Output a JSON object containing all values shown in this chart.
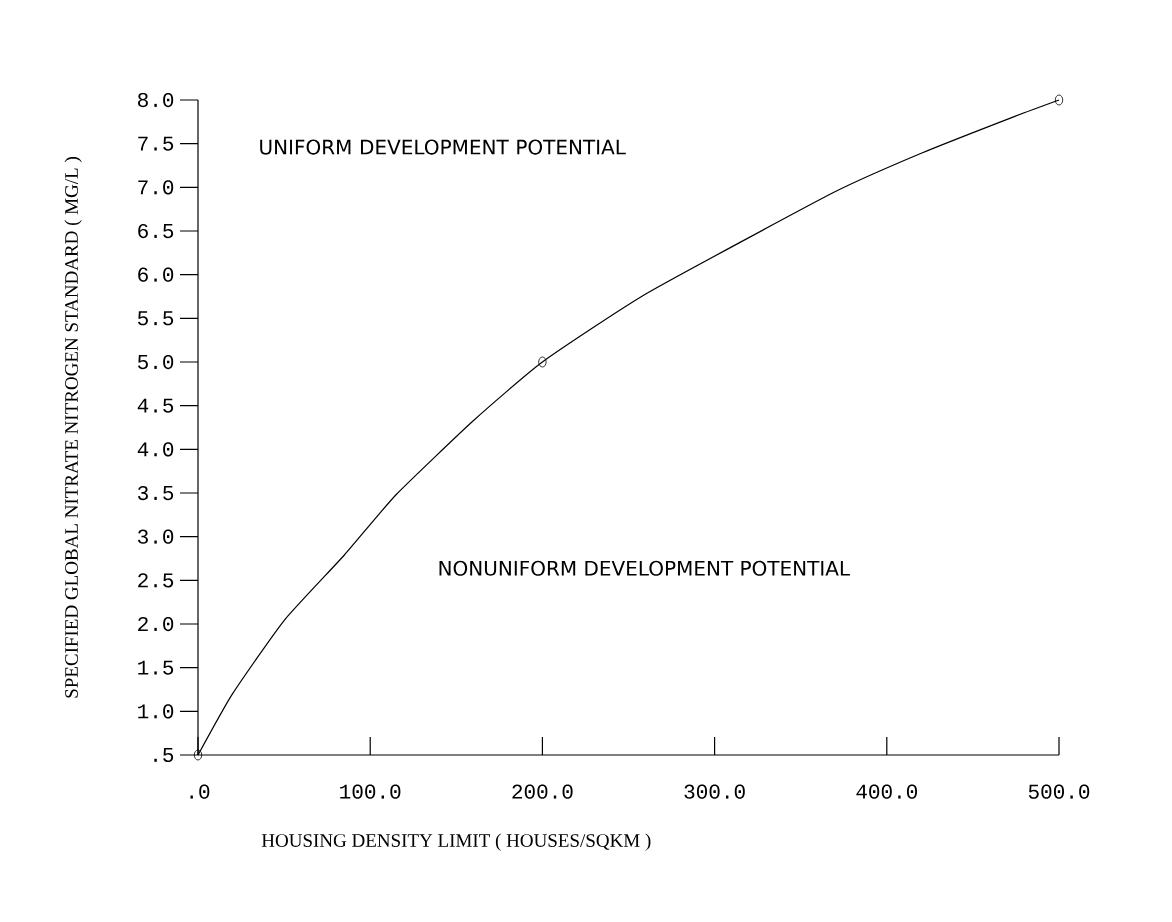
{
  "chart_data": {
    "type": "line",
    "xlabel": "HOUSING DENSITY LIMIT  ( HOUSES/SQKM )",
    "ylabel": "SPECIFIED GLOBAL NITRATE NITROGEN STANDARD  ( MG/L )",
    "annotations": [
      "UNIFORM DEVELOPMENT POTENTIAL",
      "NONUNIFORM DEVELOPMENT POTENTIAL"
    ],
    "series": [
      {
        "color": "#000000",
        "x": [
          0,
          20,
          50,
          85,
          115,
          160,
          200,
          261,
          369,
          420,
          474,
          500
        ],
        "values": [
          0.5,
          1.2,
          2.04,
          2.79,
          3.48,
          4.33,
          5.0,
          5.79,
          6.94,
          7.39,
          7.81,
          8.0
        ]
      },
      {
        "type": "scatter",
        "color": "#000000",
        "marker": "circle",
        "x": [
          0,
          200,
          500
        ],
        "values": [
          0.5,
          5.0,
          8.0
        ]
      }
    ],
    "xlim": [
      0,
      500
    ],
    "ylim": [
      0.5,
      8.0
    ],
    "xticks": [
      {
        "value": 0,
        "label": ".0"
      },
      {
        "value": 100,
        "label": "100.0"
      },
      {
        "value": 200,
        "label": "200.0"
      },
      {
        "value": 300,
        "label": "300.0"
      },
      {
        "value": 400,
        "label": "400.0"
      },
      {
        "value": 500,
        "label": "500.0"
      }
    ],
    "yticks": [
      {
        "value": 0.5,
        "label": ".5"
      },
      {
        "value": 1,
        "label": "1.0"
      },
      {
        "value": 1.5,
        "label": "1.5"
      },
      {
        "value": 2,
        "label": "2.0"
      },
      {
        "value": 2.5,
        "label": "2.5"
      },
      {
        "value": 3,
        "label": "3.0"
      },
      {
        "value": 3.5,
        "label": "3.5"
      },
      {
        "value": 4,
        "label": "4.0"
      },
      {
        "value": 4.5,
        "label": "4.5"
      },
      {
        "value": 5,
        "label": "5.0"
      },
      {
        "value": 5.5,
        "label": "5.5"
      },
      {
        "value": 6,
        "label": "6.0"
      },
      {
        "value": 6.5,
        "label": "6.5"
      },
      {
        "value": 7,
        "label": "7.0"
      },
      {
        "value": 7.5,
        "label": "7.5"
      },
      {
        "value": 8,
        "label": "8.0"
      }
    ]
  }
}
